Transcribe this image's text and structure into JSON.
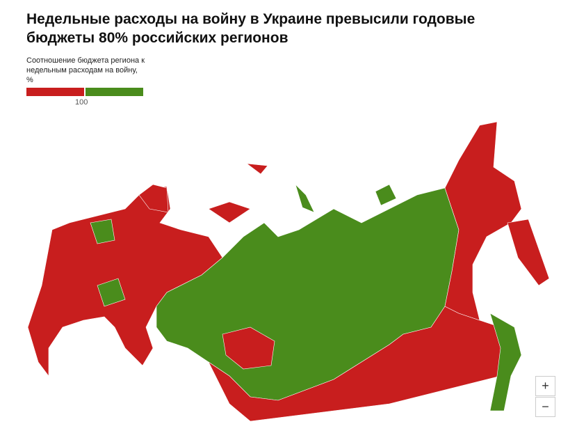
{
  "title": "Недельные расходы на войну в Украине превысили годовые бюджеты 80% российских регионов",
  "legend": {
    "title": "Соотношение бюджета региона к недельным расходам на войну, %",
    "low_color": "#c81e1e",
    "high_color": "#4a8c1c",
    "tick": 100
  },
  "zoom": {
    "in": "+",
    "out": "−"
  }
}
